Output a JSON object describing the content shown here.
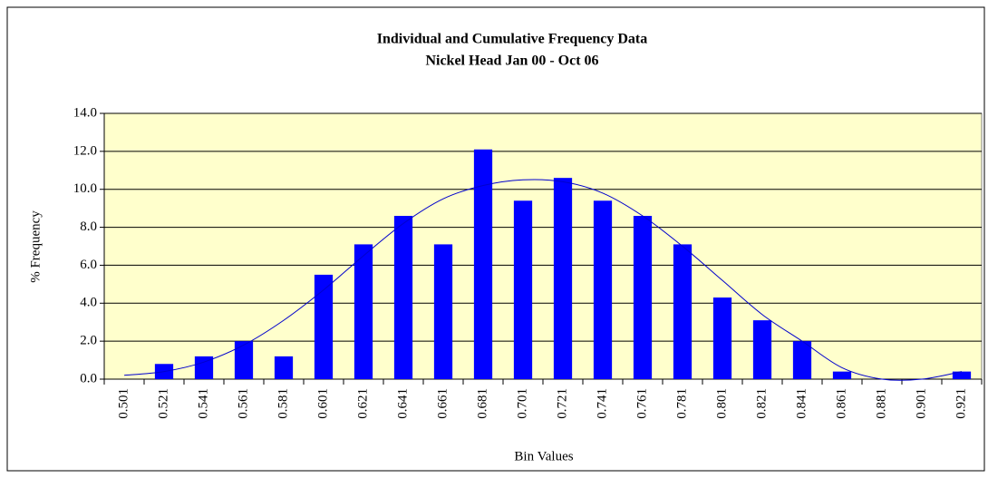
{
  "chart_data": {
    "type": "bar",
    "title": "Individual and Cumulative Frequency Data",
    "subtitle": "Nickel Head Jan 00 - Oct 06",
    "x_label": "Bin Values",
    "y_label": "% Frequency",
    "categories": [
      "0.501",
      "0.521",
      "0.541",
      "0.561",
      "0.581",
      "0.601",
      "0.621",
      "0.641",
      "0.661",
      "0.681",
      "0.701",
      "0.721",
      "0.741",
      "0.761",
      "0.781",
      "0.801",
      "0.821",
      "0.841",
      "0.861",
      "0.881",
      "0.901",
      "0.921"
    ],
    "series": [
      {
        "type": "bar",
        "color": "#0000ff",
        "values": [
          0,
          0.8,
          1.2,
          2.0,
          1.2,
          5.5,
          7.1,
          8.6,
          7.1,
          12.1,
          9.4,
          10.6,
          9.4,
          8.6,
          7.1,
          4.3,
          3.1,
          2.0,
          0.4,
          0,
          0,
          0.4
        ]
      },
      {
        "type": "line",
        "color": "#0000cc",
        "values": [
          0.2,
          0.4,
          0.9,
          1.8,
          3.1,
          4.7,
          6.5,
          8.2,
          9.5,
          10.2,
          10.5,
          10.4,
          9.8,
          8.6,
          7.0,
          5.2,
          3.4,
          2.0,
          0.6,
          0.0,
          0.0,
          0.4
        ]
      }
    ],
    "ylim": [
      0,
      14
    ],
    "yticks": [
      {
        "value": 0,
        "label": "0.0"
      },
      {
        "value": 2,
        "label": "2.0"
      },
      {
        "value": 4,
        "label": "4.0"
      },
      {
        "value": 6,
        "label": "6.0"
      },
      {
        "value": 8,
        "label": "8.0"
      },
      {
        "value": 10,
        "label": "10.0"
      },
      {
        "value": 12,
        "label": "12.0"
      },
      {
        "value": 14,
        "label": "14.0"
      }
    ],
    "grid": true,
    "plot_background": "#ffffcc"
  }
}
